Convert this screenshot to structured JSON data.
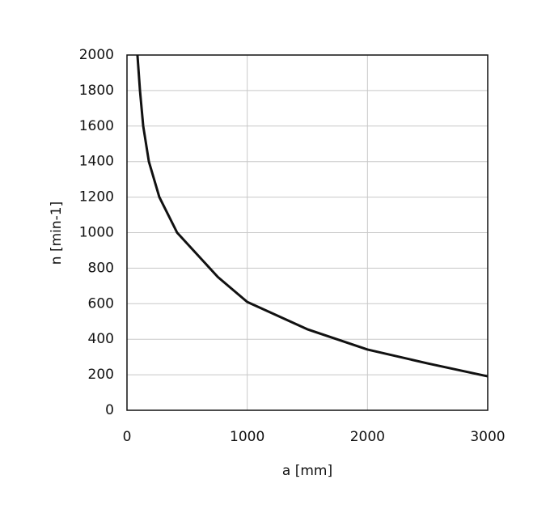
{
  "chart_data": {
    "type": "line",
    "x_label": "a [mm]",
    "y_label": "n [min-1]",
    "series": [
      {
        "color": "#111111",
        "x": [
          87,
          108,
          135,
          182,
          269,
          417,
          756,
          1000,
          1500,
          2000,
          2500,
          3000
        ],
        "values": [
          2000,
          1800,
          1600,
          1400,
          1200,
          1000,
          750,
          610,
          456,
          342,
          264,
          191
        ]
      }
    ],
    "xlim": [
      0,
      3000
    ],
    "xticks": [
      0,
      1000,
      2000,
      3000
    ],
    "ylim": [
      0,
      2000
    ],
    "yticks": [
      0,
      200,
      400,
      600,
      800,
      1000,
      1200,
      1400,
      1600,
      1800,
      2000
    ],
    "grid": true
  }
}
